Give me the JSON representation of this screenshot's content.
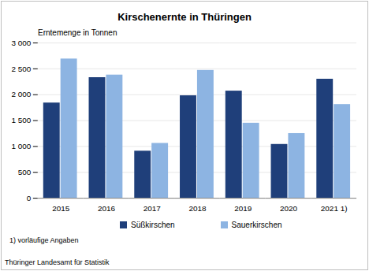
{
  "chart_data": {
    "type": "bar",
    "title": "Kirschenernte in Thüringen",
    "y_label": "Erntemenge in Tonnen",
    "categories": [
      "2015",
      "2016",
      "2017",
      "2018",
      "2019",
      "2020",
      "2021 1)"
    ],
    "series": [
      {
        "name": "Süßkirschen",
        "color": "#1f3f7a",
        "values": [
          1840,
          2330,
          910,
          1980,
          2070,
          1040,
          2300
        ]
      },
      {
        "name": "Sauerkirschen",
        "color": "#8db4e2",
        "values": [
          2690,
          2380,
          1060,
          2470,
          1450,
          1250,
          1810
        ]
      }
    ],
    "ylim": [
      0,
      3000
    ],
    "yticks": [
      0,
      500,
      {
        "value": 1000,
        "label": "1 000"
      },
      {
        "value": 1500,
        "label": "1 500"
      },
      {
        "value": 2000,
        "label": "2 000"
      },
      {
        "value": 2500,
        "label": "2 500"
      },
      {
        "value": 3000,
        "label": "3 000"
      }
    ],
    "grid": true,
    "legend": "bottom",
    "notes": [
      "1) vorläufige Angaben"
    ],
    "source": "Thüringer Landesamt für Statistik"
  }
}
